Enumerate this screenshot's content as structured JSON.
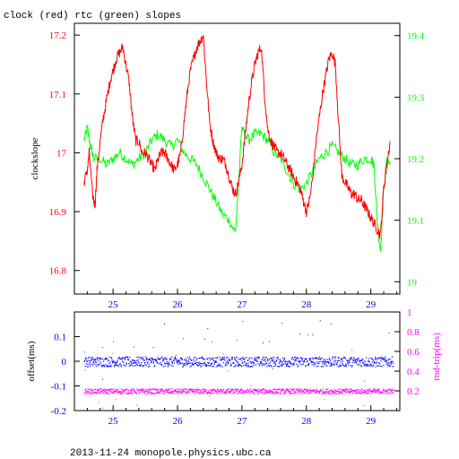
{
  "title": "clock (red) rtc (green) slopes",
  "footer": "2013-11-24 monopole.physics.ubc.ca",
  "colors": {
    "clock": "#ff0000",
    "rtc": "#00ff00",
    "offset": "#0000ff",
    "rndtrip": "#ff00ff",
    "frame": "#000000",
    "left_axis_top": "#ff0000",
    "right_axis_top": "#00ff00",
    "left_axis_bottom": "#0000ff",
    "right_axis_bottom": "#ff00ff"
  },
  "chart_data": [
    {
      "type": "line",
      "title": "clock (red) rtc (green) slopes",
      "xlabel": "",
      "ylabel": "clockslope",
      "xlim": [
        24.4,
        29.45
      ],
      "ylim": [
        16.76,
        17.22
      ],
      "y2lim": [
        18.98,
        19.42
      ],
      "xticks": [
        "25",
        "26",
        "27",
        "28",
        "29"
      ],
      "yticks": [
        "16.8",
        "16.9",
        "17",
        "17.1",
        "17.2"
      ],
      "y2ticks": [
        "19",
        "19.1",
        "19.2",
        "19.3",
        "19.4"
      ],
      "series": [
        {
          "name": "clock",
          "axis": "left",
          "color": "red",
          "x": [
            24.55,
            24.6,
            24.63,
            24.68,
            24.72,
            24.75,
            24.8,
            24.85,
            24.9,
            24.95,
            25.0,
            25.05,
            25.1,
            25.15,
            25.2,
            25.25,
            25.3,
            25.35,
            25.4,
            25.45,
            25.5,
            25.55,
            25.6,
            25.65,
            25.7,
            25.75,
            25.8,
            25.85,
            25.9,
            25.95,
            26.0,
            26.05,
            26.1,
            26.15,
            26.2,
            26.25,
            26.3,
            26.35,
            26.4,
            26.45,
            26.5,
            26.55,
            26.6,
            26.65,
            26.7,
            26.75,
            26.8,
            26.85,
            26.9,
            26.95,
            27.0,
            27.05,
            27.1,
            27.15,
            27.2,
            27.25,
            27.3,
            27.35,
            27.4,
            27.45,
            27.5,
            27.55,
            27.6,
            27.65,
            27.7,
            27.75,
            27.8,
            27.85,
            27.9,
            27.95,
            28.0,
            28.05,
            28.1,
            28.15,
            28.2,
            28.25,
            28.3,
            28.35,
            28.4,
            28.45,
            28.5,
            28.55,
            28.6,
            28.65,
            28.7,
            28.75,
            28.8,
            28.85,
            28.9,
            28.95,
            29.0,
            29.05,
            29.1,
            29.15,
            29.2,
            29.25,
            29.3
          ],
          "y": [
            16.95,
            16.97,
            17.0,
            16.93,
            16.91,
            16.97,
            17.02,
            17.06,
            17.09,
            17.12,
            17.14,
            17.16,
            17.17,
            17.18,
            17.15,
            17.12,
            17.06,
            17.02,
            17.02,
            17.0,
            17.0,
            16.99,
            16.98,
            16.97,
            16.99,
            17.0,
            17.0,
            16.99,
            16.98,
            16.97,
            16.98,
            17.0,
            17.05,
            17.1,
            17.14,
            17.16,
            17.18,
            17.19,
            17.2,
            17.12,
            17.05,
            17.02,
            17.0,
            16.99,
            16.99,
            16.98,
            16.96,
            16.94,
            16.93,
            16.95,
            16.98,
            17.03,
            17.08,
            17.12,
            17.15,
            17.17,
            17.18,
            17.1,
            17.04,
            17.02,
            17.01,
            17.0,
            17.0,
            16.99,
            16.98,
            16.97,
            16.96,
            16.95,
            16.94,
            16.92,
            16.9,
            16.92,
            16.96,
            17.02,
            17.06,
            17.1,
            17.13,
            17.16,
            17.17,
            17.15,
            17.05,
            16.96,
            16.95,
            16.94,
            16.93,
            16.93,
            16.92,
            16.92,
            16.91,
            16.9,
            16.89,
            16.88,
            16.87,
            16.86,
            16.94,
            16.98,
            17.02
          ]
        },
        {
          "name": "rtc",
          "axis": "right",
          "color": "green",
          "x": [
            24.55,
            24.6,
            24.65,
            24.7,
            24.8,
            24.9,
            25.0,
            25.1,
            25.2,
            25.3,
            25.4,
            25.5,
            25.6,
            25.7,
            25.8,
            25.9,
            26.0,
            26.1,
            26.2,
            26.3,
            26.4,
            26.5,
            26.6,
            26.7,
            26.8,
            26.9,
            27.0,
            27.1,
            27.2,
            27.3,
            27.4,
            27.5,
            27.6,
            27.7,
            27.8,
            27.9,
            28.0,
            28.1,
            28.2,
            28.3,
            28.4,
            28.5,
            28.6,
            28.7,
            28.8,
            28.9,
            29.0,
            29.05,
            29.1,
            29.15,
            29.2,
            29.25,
            29.3
          ],
          "y": [
            19.23,
            19.25,
            19.22,
            19.2,
            19.2,
            19.19,
            19.2,
            19.21,
            19.2,
            19.19,
            19.2,
            19.21,
            19.23,
            19.24,
            19.23,
            19.22,
            19.23,
            19.21,
            19.2,
            19.19,
            19.17,
            19.15,
            19.13,
            19.11,
            19.1,
            19.08,
            19.25,
            19.23,
            19.24,
            19.24,
            19.23,
            19.21,
            19.2,
            19.18,
            19.16,
            19.15,
            19.16,
            19.18,
            19.2,
            19.21,
            19.22,
            19.21,
            19.2,
            19.19,
            19.19,
            19.2,
            19.2,
            19.19,
            19.1,
            19.05,
            19.15,
            19.2,
            19.19
          ]
        }
      ]
    },
    {
      "type": "scatter",
      "xlabel": "",
      "ylabel": "offset(ms)",
      "y2label": "rnd-trip(ms)",
      "xlim": [
        24.4,
        29.45
      ],
      "ylim": [
        -0.2,
        0.2
      ],
      "y2lim": [
        0.0,
        1.0
      ],
      "xticks": [
        "25",
        "26",
        "27",
        "28",
        "29"
      ],
      "yticks": [
        "-0.2",
        "-0.1",
        "0",
        "0.1"
      ],
      "y2ticks": [
        "0.2",
        "0.4",
        "0.6",
        "0.8",
        "1"
      ],
      "series": [
        {
          "name": "offset",
          "axis": "left",
          "color": "blue",
          "x": [
            24.55,
            29.35
          ],
          "y_center": 0.0,
          "y_spread": 0.02
        },
        {
          "name": "rnd-trip",
          "axis": "right",
          "color": "magenta",
          "x": [
            24.55,
            29.35
          ],
          "y_center": 0.2,
          "y_spread": 0.025
        }
      ]
    }
  ]
}
